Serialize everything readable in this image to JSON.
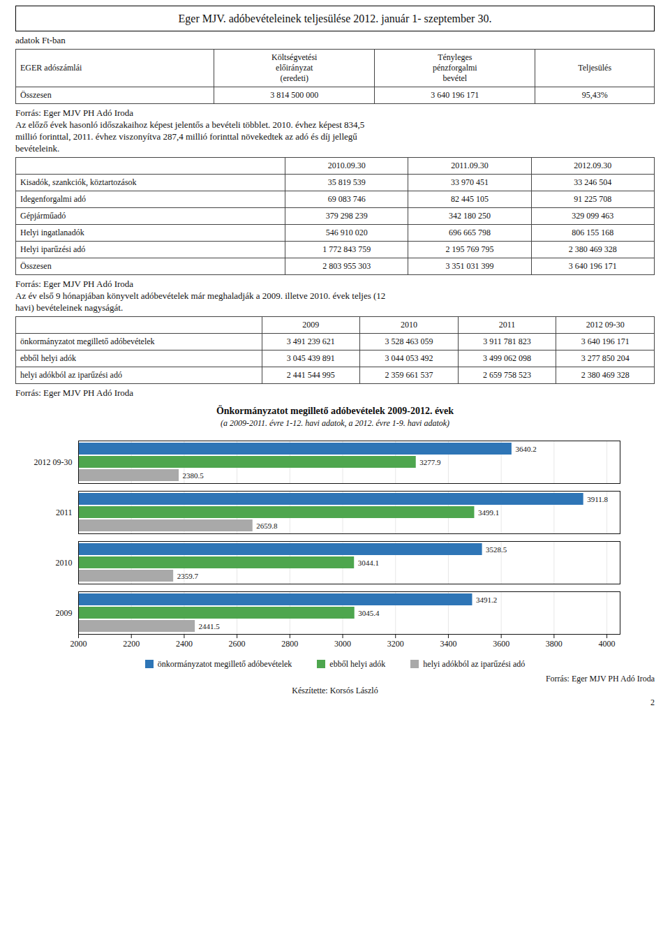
{
  "chart_data": {
    "type": "bar",
    "orientation": "horizontal",
    "title": "Önkormányzatot megillető adóbevételek 2009-2012. évek",
    "subtitle": "(a 2009-2011. évre 1-12. havi adatok, a 2012. évre 1-9. havi adatok)",
    "categories": [
      "2012 09-30",
      "2011",
      "2010",
      "2009"
    ],
    "series": [
      {
        "name": "önkormányzatot megillető adóbevételek",
        "color": "#2E75B6",
        "values": [
          3640.2,
          3911.8,
          3528.5,
          3491.2
        ]
      },
      {
        "name": "ebből helyi adók",
        "color": "#4EA64E",
        "values": [
          3277.9,
          3499.1,
          3044.1,
          3045.4
        ]
      },
      {
        "name": "helyi adókból az iparűzési adó",
        "color": "#A9A9A9",
        "values": [
          2380.5,
          2659.8,
          2359.7,
          2441.5
        ]
      }
    ],
    "xlim": [
      2000,
      4050
    ],
    "xticks": [
      2000,
      2200,
      2400,
      2600,
      2800,
      3000,
      3200,
      3400,
      3600,
      3800,
      4000
    ],
    "grid": true,
    "legend": "bottom",
    "data_labels": true,
    "annotations": [
      "Eger MJV. adóbevételeinek teljesülése 2012. január 1- szeptember 30.",
      "adatok Ft-ban",
      [
        "EGER adószámlái",
        "Költségvetési\nelőirányzat\n(eredeti)",
        "Tényleges\npénzforgalmi\nbevétel",
        "Teljesülés"
      ],
      [
        "Összesen",
        "3 814 500 000",
        "3 640 196 171",
        "95,43%"
      ],
      "Forrás: Eger MJV PH Adó Iroda",
      "Az előző évek hasonló időszakaihoz képest jelentős a bevételi többlet. 2010. évhez képest 834,5",
      "millió forinttal, 2011. évhez viszonyítva 287,4 millió forinttal növekedtek az adó és díj jellegű",
      "bevételeink.",
      [
        null,
        "2010.09.30",
        "2011.09.30",
        "2012.09.30"
      ],
      [
        "Kisadók, szankciók, köztartozások",
        "35 819 539",
        "33 970 451",
        "33 246 504"
      ],
      [
        "Idegenforgalmi adó",
        "69 083 746",
        "82 445 105",
        "91 225 708"
      ],
      [
        "Gépjárműadó",
        "379 298 239",
        "342 180 250",
        "329 099 463"
      ],
      [
        "Helyi ingatlanadók",
        "546 910 020",
        "696 665 798",
        "806 155 168"
      ],
      [
        "Helyi iparűzési adó",
        "1 772 843 759",
        "2 195 769 795",
        "2 380 469 328"
      ],
      [
        "Összesen",
        "2 803 955 303",
        "3 351 031 399",
        "3 640 196 171"
      ],
      "Forrás: Eger MJV PH Adó Iroda",
      "Az év első 9 hónapjában könyvelt adóbevételek már meghaladják a 2009. illetve 2010. évek teljes (12",
      "havi) bevételeinek nagyságát.",
      [
        null,
        "2009",
        "2010",
        "2011",
        "2012 09-30"
      ],
      [
        "önkormányzatot megillető adóbevételek",
        "3 491 239 621",
        "3 528 463 059",
        "3 911 781 823",
        "3 640 196 171"
      ],
      [
        "ebből helyi adók",
        "3 045 439 891",
        "3 044 053 492",
        "3 499 062 098",
        "3 277 850 204"
      ],
      [
        "helyi adókból az iparűzési adó",
        "2 441 544 995",
        "2 359 661 537",
        "2 659 758 523",
        "2 380 469 328"
      ],
      "Forrás: Eger MJV PH Adó Iroda",
      "Forrás: Eger MJV PH Adó Iroda",
      "Készítette: Korsós László",
      "2"
    ]
  }
}
